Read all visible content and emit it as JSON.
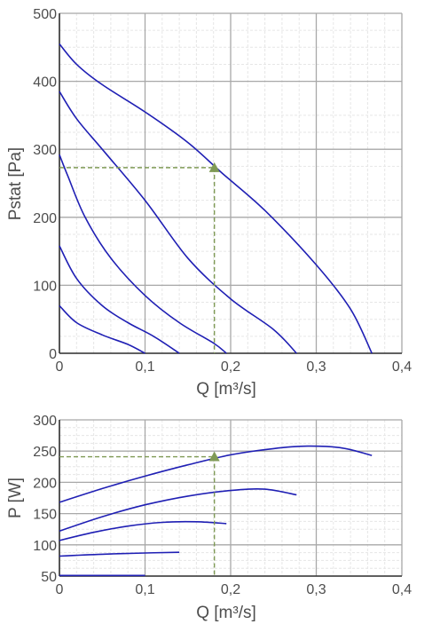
{
  "chart_data": [
    {
      "type": "line",
      "xlabel": "Q [m³/s]",
      "ylabel": "Pstat [Pa]",
      "xlim": [
        0,
        0.4
      ],
      "ylim": [
        0,
        500
      ],
      "grid": true,
      "x_ticks": [
        "0",
        "0,1",
        "0,2",
        "0,3",
        "0,4"
      ],
      "y_ticks": [
        "0",
        "100",
        "200",
        "300",
        "400",
        "500"
      ],
      "line_color": "#1f1fb4",
      "series": [
        {
          "points": [
            [
              0,
              455
            ],
            [
              0.02,
              425
            ],
            [
              0.05,
              395
            ],
            [
              0.1,
              355
            ],
            [
              0.15,
              310
            ],
            [
              0.19,
              265
            ],
            [
              0.24,
              210
            ],
            [
              0.3,
              130
            ],
            [
              0.34,
              65
            ],
            [
              0.365,
              0
            ]
          ]
        },
        {
          "points": [
            [
              0,
              385
            ],
            [
              0.02,
              345
            ],
            [
              0.05,
              300
            ],
            [
              0.1,
              225
            ],
            [
              0.15,
              140
            ],
            [
              0.2,
              80
            ],
            [
              0.25,
              35
            ],
            [
              0.277,
              0
            ]
          ]
        },
        {
          "points": [
            [
              0,
              292
            ],
            [
              0.01,
              260
            ],
            [
              0.03,
              200
            ],
            [
              0.06,
              140
            ],
            [
              0.1,
              85
            ],
            [
              0.14,
              45
            ],
            [
              0.18,
              15
            ],
            [
              0.195,
              0
            ]
          ]
        },
        {
          "points": [
            [
              0,
              158
            ],
            [
              0.02,
              110
            ],
            [
              0.05,
              70
            ],
            [
              0.08,
              45
            ],
            [
              0.11,
              25
            ],
            [
              0.14,
              0
            ]
          ]
        },
        {
          "points": [
            [
              0,
              70
            ],
            [
              0.02,
              45
            ],
            [
              0.05,
              27
            ],
            [
              0.08,
              13
            ],
            [
              0.1,
              0
            ]
          ]
        }
      ],
      "operating_point": {
        "x": 0.181,
        "y": 273,
        "color": "#7f9a55"
      }
    },
    {
      "type": "line",
      "xlabel": "Q [m³/s]",
      "ylabel": "P [W]",
      "xlim": [
        0,
        0.4
      ],
      "ylim": [
        50,
        300
      ],
      "grid": true,
      "x_ticks": [
        "0",
        "0,1",
        "0,2",
        "0,3",
        "0,4"
      ],
      "y_ticks": [
        "50",
        "100",
        "150",
        "200",
        "250",
        "300"
      ],
      "line_color": "#1f1fb4",
      "series": [
        {
          "points": [
            [
              0,
              168
            ],
            [
              0.05,
              190
            ],
            [
              0.1,
              210
            ],
            [
              0.15,
              228
            ],
            [
              0.2,
              244
            ],
            [
              0.25,
              254
            ],
            [
              0.29,
              258
            ],
            [
              0.33,
              255
            ],
            [
              0.365,
              243
            ]
          ]
        },
        {
          "points": [
            [
              0,
              122
            ],
            [
              0.05,
              145
            ],
            [
              0.1,
              164
            ],
            [
              0.15,
              178
            ],
            [
              0.2,
              187
            ],
            [
              0.24,
              189
            ],
            [
              0.277,
              180
            ]
          ]
        },
        {
          "points": [
            [
              0,
              107
            ],
            [
              0.04,
              120
            ],
            [
              0.08,
              130
            ],
            [
              0.12,
              136
            ],
            [
              0.16,
              137
            ],
            [
              0.195,
              134
            ]
          ]
        },
        {
          "points": [
            [
              0,
              82
            ],
            [
              0.05,
              85
            ],
            [
              0.1,
              87
            ],
            [
              0.14,
              88
            ]
          ]
        },
        {
          "points": [
            [
              0,
              51
            ],
            [
              0.1,
              51
            ]
          ]
        }
      ],
      "operating_point": {
        "x": 0.181,
        "y": 241,
        "color": "#7f9a55"
      }
    }
  ]
}
